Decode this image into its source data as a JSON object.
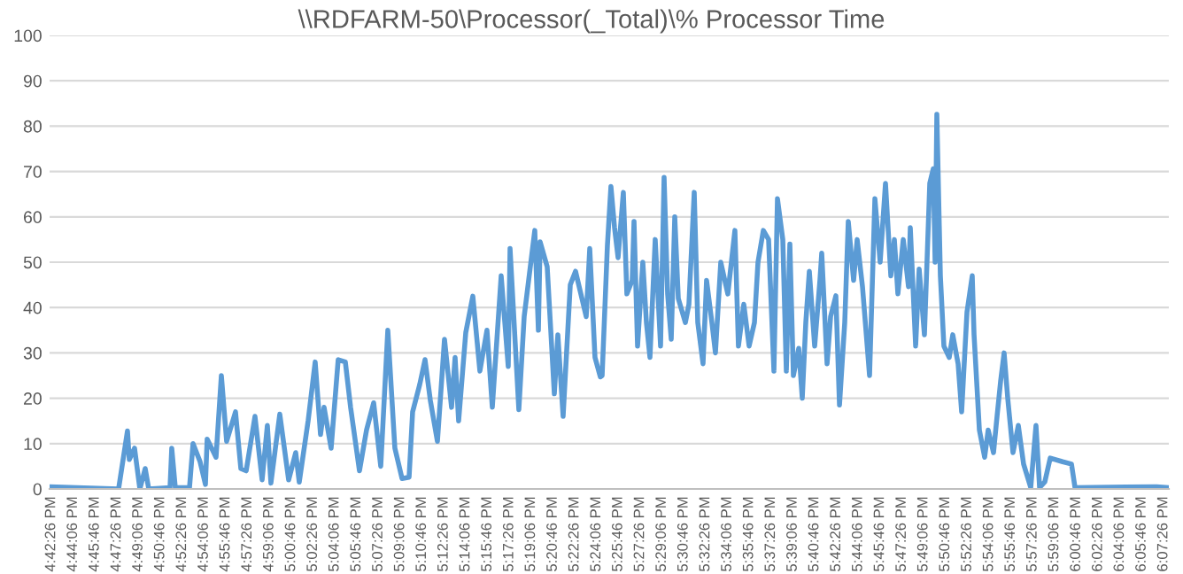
{
  "chart_data": {
    "type": "line",
    "title": "\\\\RDFARM-50\\Processor(_Total)\\% Processor Time",
    "x": [
      16.705,
      16.7929,
      16.8042,
      16.8065,
      16.8132,
      16.82,
      16.8268,
      16.8313,
      16.8584,
      16.8606,
      16.8651,
      16.8832,
      16.8877,
      16.8967,
      16.9035,
      16.9057,
      16.917,
      16.9238,
      16.9305,
      16.9418,
      16.9486,
      16.9554,
      16.9666,
      16.9757,
      16.9824,
      16.9869,
      16.9982,
      17.0095,
      17.0185,
      17.023,
      17.0343,
      17.0433,
      17.0501,
      17.0546,
      17.0636,
      17.0726,
      17.0817,
      17.0884,
      17.0997,
      17.1087,
      17.1178,
      17.1268,
      17.1358,
      17.1448,
      17.1539,
      17.1629,
      17.1674,
      17.1764,
      17.1832,
      17.19,
      17.199,
      17.208,
      17.217,
      17.2215,
      17.226,
      17.2351,
      17.2441,
      17.2531,
      17.2621,
      17.2689,
      17.2802,
      17.2892,
      17.2915,
      17.3027,
      17.3095,
      17.323,
      17.3276,
      17.3298,
      17.3388,
      17.3479,
      17.3524,
      17.3591,
      17.3682,
      17.3749,
      17.3885,
      17.393,
      17.3997,
      17.4065,
      17.4088,
      17.4155,
      17.42,
      17.4246,
      17.4291,
      17.4358,
      17.4403,
      17.4471,
      17.4494,
      17.4539,
      17.4606,
      17.4652,
      17.4697,
      17.4764,
      17.4832,
      17.4877,
      17.4922,
      17.4968,
      17.5013,
      17.5058,
      17.5148,
      17.5193,
      17.5261,
      17.5306,
      17.5373,
      17.5418,
      17.5486,
      17.5531,
      17.5599,
      17.5689,
      17.5779,
      17.5824,
      17.5892,
      17.596,
      17.6028,
      17.6073,
      17.6141,
      17.6208,
      17.6276,
      17.6321,
      17.6389,
      17.6434,
      17.6479,
      17.6524,
      17.6592,
      17.6637,
      17.6682,
      17.6727,
      17.6795,
      17.6862,
      17.6885,
      17.6953,
      17.6998,
      17.7065,
      17.7111,
      17.7178,
      17.7223,
      17.7291,
      17.7336,
      17.7404,
      17.7494,
      17.7562,
      17.7629,
      17.7697,
      17.7765,
      17.781,
      17.7855,
      17.7923,
      17.799,
      17.8013,
      17.8081,
      17.8126,
      17.8193,
      17.8261,
      17.8306,
      17.8329,
      17.8351,
      17.8396,
      17.8441,
      17.8509,
      17.8554,
      17.8622,
      17.8667,
      17.8735,
      17.8802,
      17.8825,
      17.8893,
      17.896,
      17.9005,
      17.9073,
      17.9118,
      17.9163,
      17.9208,
      17.9254,
      17.9321,
      17.9389,
      17.9456,
      17.9547,
      17.9614,
      17.966,
      17.9727,
      17.9795,
      17.9953,
      18.0066,
      18.0111,
      18.1148,
      18.1306
    ],
    "series": [
      {
        "color": "#5b9bd5",
        "values": [
          0.5,
          0,
          12.8,
          6.5,
          9,
          0,
          4.5,
          0,
          0.3,
          9,
          0.3,
          0.3,
          10,
          6,
          1,
          11,
          7,
          25,
          10.5,
          17,
          4.5,
          4,
          16,
          2,
          14,
          1.3,
          16.5,
          2,
          8,
          1.5,
          15,
          28,
          12,
          18,
          9,
          28.5,
          28,
          18,
          4,
          13,
          19,
          5,
          35,
          9,
          2.3,
          2.6,
          17,
          23,
          28.5,
          19.5,
          10.5,
          33,
          18,
          29,
          15,
          34.5,
          42.5,
          26,
          35,
          18,
          47,
          27,
          53,
          17.5,
          38,
          57,
          35,
          54.5,
          49,
          21,
          34,
          16,
          45,
          48,
          38,
          53,
          29,
          24.7,
          25,
          53.7,
          66.7,
          57.6,
          51,
          65.4,
          43,
          46,
          59,
          31.5,
          50,
          36.7,
          29,
          55,
          31.5,
          68.7,
          43,
          33,
          60,
          42,
          36.7,
          40.7,
          65.4,
          36.7,
          27.6,
          46,
          36.7,
          30,
          50,
          43,
          57,
          31.5,
          40.7,
          31.5,
          36.7,
          50,
          57,
          55,
          26,
          64,
          55,
          26,
          54,
          25,
          31,
          20,
          36.7,
          48,
          31.5,
          46,
          52,
          27.6,
          38,
          42.6,
          18.5,
          36.7,
          59,
          46,
          55,
          44.6,
          25,
          64,
          50,
          67.4,
          47,
          55,
          43,
          55,
          44.6,
          57.6,
          31.5,
          48.5,
          34,
          67.4,
          70.6,
          50,
          82.6,
          47,
          31.5,
          29,
          34,
          27.6,
          17,
          39,
          47,
          34,
          13,
          7,
          13,
          8,
          16,
          23.7,
          30,
          20,
          8,
          14,
          5.5,
          0.3,
          14,
          0.3,
          1.6,
          6.8,
          6,
          5.5,
          0.3,
          0.5,
          0.3
        ]
      }
    ],
    "xlim": [
      16.705,
      18.1306
    ],
    "xticks": [
      {
        "value": 16.7072,
        "label": "4:42:26 PM"
      },
      {
        "value": 16.735,
        "label": "4:44:06 PM"
      },
      {
        "value": 16.7628,
        "label": "4:45:46 PM"
      },
      {
        "value": 16.7906,
        "label": "4:47:26 PM"
      },
      {
        "value": 16.8183,
        "label": "4:49:06 PM"
      },
      {
        "value": 16.8461,
        "label": "4:50:46 PM"
      },
      {
        "value": 16.8739,
        "label": "4:52:26 PM"
      },
      {
        "value": 16.9017,
        "label": "4:54:06 PM"
      },
      {
        "value": 16.9294,
        "label": "4:55:46 PM"
      },
      {
        "value": 16.9572,
        "label": "4:57:26 PM"
      },
      {
        "value": 16.985,
        "label": "4:59:06 PM"
      },
      {
        "value": 17.0128,
        "label": "5:00:46 PM"
      },
      {
        "value": 17.0406,
        "label": "5:02:26 PM"
      },
      {
        "value": 17.0683,
        "label": "5:04:06 PM"
      },
      {
        "value": 17.0961,
        "label": "5:05:46 PM"
      },
      {
        "value": 17.1239,
        "label": "5:07:26 PM"
      },
      {
        "value": 17.1517,
        "label": "5:09:06 PM"
      },
      {
        "value": 17.1794,
        "label": "5:10:46 PM"
      },
      {
        "value": 17.2072,
        "label": "5:12:26 PM"
      },
      {
        "value": 17.235,
        "label": "5:14:06 PM"
      },
      {
        "value": 17.2628,
        "label": "5:15:46 PM"
      },
      {
        "value": 17.2906,
        "label": "5:17:26 PM"
      },
      {
        "value": 17.3183,
        "label": "5:19:06 PM"
      },
      {
        "value": 17.3461,
        "label": "5:20:46 PM"
      },
      {
        "value": 17.3739,
        "label": "5:22:26 PM"
      },
      {
        "value": 17.4017,
        "label": "5:24:06 PM"
      },
      {
        "value": 17.4294,
        "label": "5:25:46 PM"
      },
      {
        "value": 17.4572,
        "label": "5:27:26 PM"
      },
      {
        "value": 17.485,
        "label": "5:29:06 PM"
      },
      {
        "value": 17.5128,
        "label": "5:30:46 PM"
      },
      {
        "value": 17.5406,
        "label": "5:32:26 PM"
      },
      {
        "value": 17.5683,
        "label": "5:34:06 PM"
      },
      {
        "value": 17.5961,
        "label": "5:35:46 PM"
      },
      {
        "value": 17.6239,
        "label": "5:37:26 PM"
      },
      {
        "value": 17.6517,
        "label": "5:39:06 PM"
      },
      {
        "value": 17.6794,
        "label": "5:40:46 PM"
      },
      {
        "value": 17.7072,
        "label": "5:42:26 PM"
      },
      {
        "value": 17.735,
        "label": "5:44:06 PM"
      },
      {
        "value": 17.7628,
        "label": "5:45:46 PM"
      },
      {
        "value": 17.7906,
        "label": "5:47:26 PM"
      },
      {
        "value": 17.8183,
        "label": "5:49:06 PM"
      },
      {
        "value": 17.8461,
        "label": "5:50:46 PM"
      },
      {
        "value": 17.8739,
        "label": "5:52:26 PM"
      },
      {
        "value": 17.9017,
        "label": "5:54:06 PM"
      },
      {
        "value": 17.9294,
        "label": "5:55:46 PM"
      },
      {
        "value": 17.9572,
        "label": "5:57:26 PM"
      },
      {
        "value": 17.985,
        "label": "5:59:06 PM"
      },
      {
        "value": 18.0128,
        "label": "6:00:46 PM"
      },
      {
        "value": 18.0406,
        "label": "6:02:26 PM"
      },
      {
        "value": 18.0683,
        "label": "6:04:06 PM"
      },
      {
        "value": 18.0961,
        "label": "6:05:46 PM"
      },
      {
        "value": 18.1239,
        "label": "6:07:26 PM"
      }
    ],
    "ylim": [
      0,
      100
    ],
    "yticks": [
      0,
      10,
      20,
      30,
      40,
      50,
      60,
      70,
      80,
      90,
      100
    ],
    "grid": "y",
    "marker": "none",
    "line_style": "solid"
  }
}
